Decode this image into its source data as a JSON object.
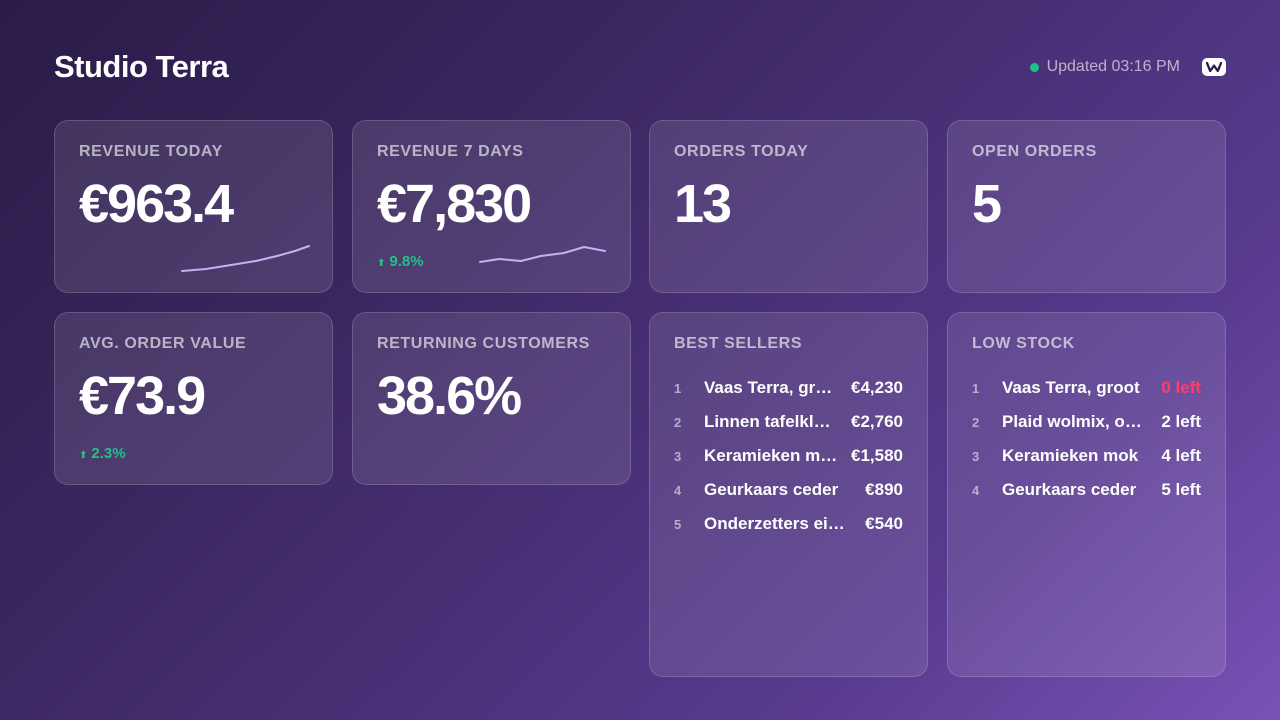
{
  "header": {
    "title": "Studio Terra",
    "updated": "Updated 03:16 PM",
    "status_color": "#1ec08a",
    "logo_icon": "w-logo-icon"
  },
  "kpis": {
    "revenue_today": {
      "title": "REVENUE TODAY",
      "value": "€963.4"
    },
    "revenue_7days": {
      "title": "REVENUE 7 DAYS",
      "value": "€7,830",
      "delta": "9.8%"
    },
    "orders_today": {
      "title": "ORDERS TODAY",
      "value": "13"
    },
    "open_orders": {
      "title": "OPEN ORDERS",
      "value": "5"
    },
    "avg_order": {
      "title": "AVG. ORDER VALUE",
      "value": "€73.9",
      "delta": "2.3%"
    },
    "returning": {
      "title": "RETURNING CUSTOMERS",
      "value": "38.6%"
    }
  },
  "best_sellers": {
    "title": "BEST SELLERS",
    "items": [
      {
        "rank": "1",
        "name": "Vaas Terra, groot",
        "amount": "€4,230"
      },
      {
        "rank": "2",
        "name": "Linnen tafelkleed",
        "amount": "€2,760"
      },
      {
        "rank": "3",
        "name": "Keramieken mok",
        "amount": "€1,580"
      },
      {
        "rank": "4",
        "name": "Geurkaars ceder",
        "amount": "€890"
      },
      {
        "rank": "5",
        "name": "Onderzetters eiken",
        "amount": "€540"
      }
    ]
  },
  "low_stock": {
    "title": "LOW STOCK",
    "items": [
      {
        "rank": "1",
        "name": "Vaas Terra, groot",
        "amount": "0 left"
      },
      {
        "rank": "2",
        "name": "Plaid wolmix, oker",
        "amount": "2 left"
      },
      {
        "rank": "3",
        "name": "Keramieken mok",
        "amount": "4 left"
      },
      {
        "rank": "4",
        "name": "Geurkaars ceder",
        "amount": "5 left"
      }
    ]
  },
  "colors": {
    "positive": "#23c08c",
    "danger": "#ff3d6a",
    "sparkline": "#c9aef5"
  }
}
